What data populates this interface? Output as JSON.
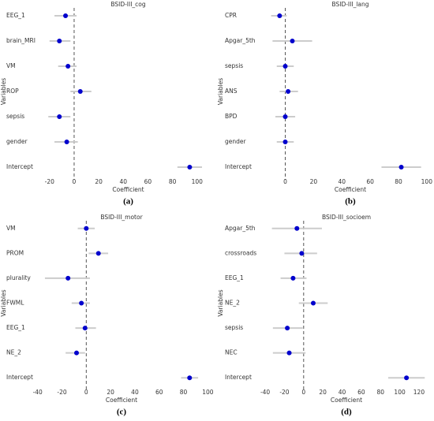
{
  "chart_data": [
    {
      "type": "forest",
      "title": "BSID-III_cog",
      "caption": "(a)",
      "xlabel": "Coefficient",
      "ylabel": "Variables",
      "categories": [
        "EEG_1",
        "brain_MRI",
        "VM",
        "ROP",
        "sepsis",
        "gender",
        "Intercept"
      ],
      "values": [
        -7,
        -12,
        -5,
        5,
        -12,
        -6,
        94
      ],
      "ci_low": [
        -16,
        -20,
        -13,
        -3,
        -21,
        -16,
        84
      ],
      "ci_high": [
        2,
        -3,
        2,
        14,
        -3,
        3,
        104
      ],
      "xlim": [
        -25,
        113
      ],
      "xticks": [
        -20,
        0,
        20,
        40,
        60,
        80,
        100
      ],
      "ref_line": 0,
      "color": "#0000cd",
      "ci_color": "#cccccc"
    },
    {
      "type": "forest",
      "title": "BSID-III_lang",
      "caption": "(b)",
      "xlabel": "Coefficient",
      "ylabel": "Variables",
      "categories": [
        "CPR",
        "Apgar_5th",
        "sepsis",
        "ANS",
        "BPD",
        "gender",
        "Intercept"
      ],
      "values": [
        -4,
        5,
        0,
        2,
        0,
        0,
        82
      ],
      "ci_low": [
        -10,
        -9,
        -6,
        -4,
        -7,
        -6,
        68
      ],
      "ci_high": [
        1,
        19,
        6,
        9,
        7,
        6,
        96
      ],
      "xlim": [
        -12,
        104
      ],
      "xticks": [
        0,
        20,
        40,
        60,
        80,
        100
      ],
      "ref_line": 0,
      "color": "#0000cd",
      "ci_color": "#cccccc"
    },
    {
      "type": "forest",
      "title": "BSID-III_motor",
      "caption": "(c)",
      "xlabel": "Coefficient",
      "ylabel": "Variables",
      "categories": [
        "VM",
        "PROM",
        "plurality",
        "FWML",
        "EEG_1",
        "NE_2",
        "Intercept"
      ],
      "values": [
        0,
        10,
        -15,
        -4,
        -1,
        -8,
        85
      ],
      "ci_low": [
        -7,
        2,
        -34,
        -12,
        -9,
        -17,
        78
      ],
      "ci_high": [
        7,
        18,
        3,
        3,
        8,
        -1,
        92
      ],
      "xlim": [
        -45,
        103
      ],
      "xticks": [
        -40,
        -20,
        0,
        20,
        40,
        60,
        80,
        100
      ],
      "ref_line": 0,
      "color": "#0000cd",
      "ci_color": "#cccccc"
    },
    {
      "type": "forest",
      "title": "BSID-III_socioem",
      "caption": "(d)",
      "xlabel": "Coefficient",
      "ylabel": "Variables",
      "categories": [
        "Apgar_5th",
        "crossroads",
        "EEG_1",
        "NE_2",
        "sepsis",
        "NEC",
        "Intercept"
      ],
      "values": [
        -7,
        -2,
        -11,
        10,
        -17,
        -15,
        107
      ],
      "ci_low": [
        -33,
        -20,
        -24,
        -5,
        -32,
        -32,
        88
      ],
      "ci_high": [
        19,
        14,
        3,
        25,
        -1,
        2,
        126
      ],
      "xlim": [
        -45,
        134
      ],
      "xticks": [
        -40,
        -20,
        0,
        20,
        40,
        60,
        80,
        100,
        120
      ],
      "ref_line": 0,
      "color": "#0000cd",
      "ci_color": "#cccccc"
    }
  ]
}
